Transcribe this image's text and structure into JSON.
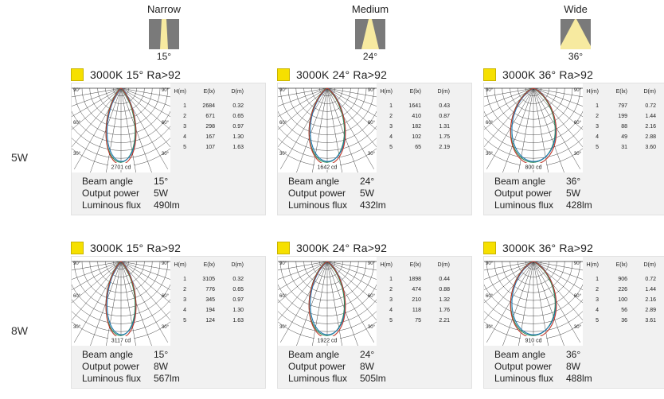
{
  "headers": [
    {
      "name": "Narrow",
      "angle": "15°"
    },
    {
      "name": "Medium",
      "angle": "24°"
    },
    {
      "name": "Wide",
      "angle": "36°"
    }
  ],
  "rows": [
    {
      "label": "5W"
    },
    {
      "label": "8W"
    }
  ],
  "table_headers": {
    "h": "H(m)",
    "e": "E(lx)",
    "d": "D(m)"
  },
  "spec_labels": {
    "beam": "Beam angle",
    "power": "Output power",
    "flux": "Luminous flux"
  },
  "deg_labels": {
    "d90": "90°",
    "d60": "60°",
    "d30": "30°"
  },
  "colors": {
    "swatch": "#f6e000",
    "curve_red": "#c0392b",
    "curve_blue": "#1f77b4",
    "curve_green": "#2e8b57"
  },
  "chart_data": [
    {
      "type": "table",
      "title": "3000K  15°  Ra>92",
      "peak": "2701 cd",
      "rows": [
        [
          "1",
          "2684",
          "0.32"
        ],
        [
          "2",
          "671",
          "0.65"
        ],
        [
          "3",
          "298",
          "0.97"
        ],
        [
          "4",
          "167",
          "1.30"
        ],
        [
          "5",
          "107",
          "1.63"
        ]
      ],
      "beam_angle": "15°",
      "output_power": "5W",
      "luminous_flux": "490lm"
    },
    {
      "type": "table",
      "title": "3000K  24°  Ra>92",
      "peak": "1642 cd",
      "rows": [
        [
          "1",
          "1641",
          "0.43"
        ],
        [
          "2",
          "410",
          "0.87"
        ],
        [
          "3",
          "182",
          "1.31"
        ],
        [
          "4",
          "102",
          "1.75"
        ],
        [
          "5",
          "65",
          "2.19"
        ]
      ],
      "beam_angle": "24°",
      "output_power": "5W",
      "luminous_flux": "432lm"
    },
    {
      "type": "table",
      "title": "3000K  36°  Ra>92",
      "peak": "800 cd",
      "rows": [
        [
          "1",
          "797",
          "0.72"
        ],
        [
          "2",
          "199",
          "1.44"
        ],
        [
          "3",
          "88",
          "2.16"
        ],
        [
          "4",
          "49",
          "2.88"
        ],
        [
          "5",
          "31",
          "3.60"
        ]
      ],
      "beam_angle": "36°",
      "output_power": "5W",
      "luminous_flux": "428lm"
    },
    {
      "type": "table",
      "title": "3000K  15°  Ra>92",
      "peak": "3117 cd",
      "rows": [
        [
          "1",
          "3105",
          "0.32"
        ],
        [
          "2",
          "776",
          "0.65"
        ],
        [
          "3",
          "345",
          "0.97"
        ],
        [
          "4",
          "194",
          "1.30"
        ],
        [
          "5",
          "124",
          "1.63"
        ]
      ],
      "beam_angle": "15°",
      "output_power": "8W",
      "luminous_flux": "567lm"
    },
    {
      "type": "table",
      "title": "3000K  24°  Ra>92",
      "peak": "1922 cd",
      "rows": [
        [
          "1",
          "1898",
          "0.44"
        ],
        [
          "2",
          "474",
          "0.88"
        ],
        [
          "3",
          "210",
          "1.32"
        ],
        [
          "4",
          "118",
          "1.76"
        ],
        [
          "5",
          "75",
          "2.21"
        ]
      ],
      "beam_angle": "24°",
      "output_power": "8W",
      "luminous_flux": "505lm"
    },
    {
      "type": "table",
      "title": "3000K  36°  Ra>92",
      "peak": "910 cd",
      "rows": [
        [
          "1",
          "906",
          "0.72"
        ],
        [
          "2",
          "226",
          "1.44"
        ],
        [
          "3",
          "100",
          "2.16"
        ],
        [
          "4",
          "56",
          "2.89"
        ],
        [
          "5",
          "36",
          "3.61"
        ]
      ],
      "beam_angle": "36°",
      "output_power": "8W",
      "luminous_flux": "488lm"
    }
  ]
}
